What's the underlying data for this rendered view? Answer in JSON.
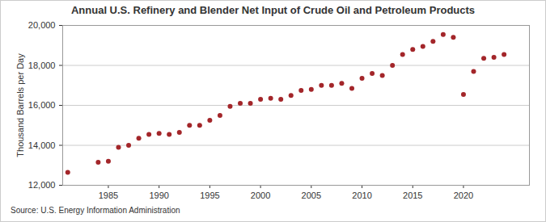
{
  "chart_data": {
    "type": "scatter",
    "title": "Annual U.S. Refinery and Blender Net Input of Crude Oil and Petroleum Products",
    "y_label": "Thousand Barrels per Day",
    "source": "Source: U.S. Energy Information Administration",
    "x": [
      1981,
      1984,
      1985,
      1986,
      1987,
      1988,
      1989,
      1990,
      1991,
      1992,
      1993,
      1994,
      1995,
      1996,
      1997,
      1998,
      1999,
      2000,
      2001,
      2002,
      2003,
      2004,
      2005,
      2006,
      2007,
      2008,
      2009,
      2010,
      2011,
      2012,
      2013,
      2014,
      2015,
      2016,
      2017,
      2018,
      2019,
      2020,
      2021,
      2022,
      2023,
      2024
    ],
    "values": [
      12650,
      13150,
      13200,
      13900,
      14000,
      14350,
      14550,
      14600,
      14550,
      14650,
      15000,
      15000,
      15250,
      15500,
      15950,
      16100,
      16100,
      16300,
      16350,
      16300,
      16500,
      16750,
      16800,
      17000,
      17000,
      17100,
      16850,
      17350,
      17600,
      17500,
      18000,
      18550,
      18800,
      18950,
      19200,
      19550,
      19400,
      16550,
      17700,
      18350,
      18400,
      18550
    ],
    "color": "#a3262a",
    "marker": "circle",
    "xlim": [
      1980.5,
      2026.5
    ],
    "xticks": [
      1985,
      1990,
      1995,
      2000,
      2005,
      2010,
      2015,
      2020
    ],
    "ylim": [
      12000,
      20000
    ],
    "yticks": [
      {
        "value": 12000,
        "label": "12,000"
      },
      {
        "value": 14000,
        "label": "14,000"
      },
      {
        "value": 16000,
        "label": "16,000"
      },
      {
        "value": 18000,
        "label": "18,000"
      },
      {
        "value": 20000,
        "label": "20,000"
      }
    ],
    "grid": true
  }
}
